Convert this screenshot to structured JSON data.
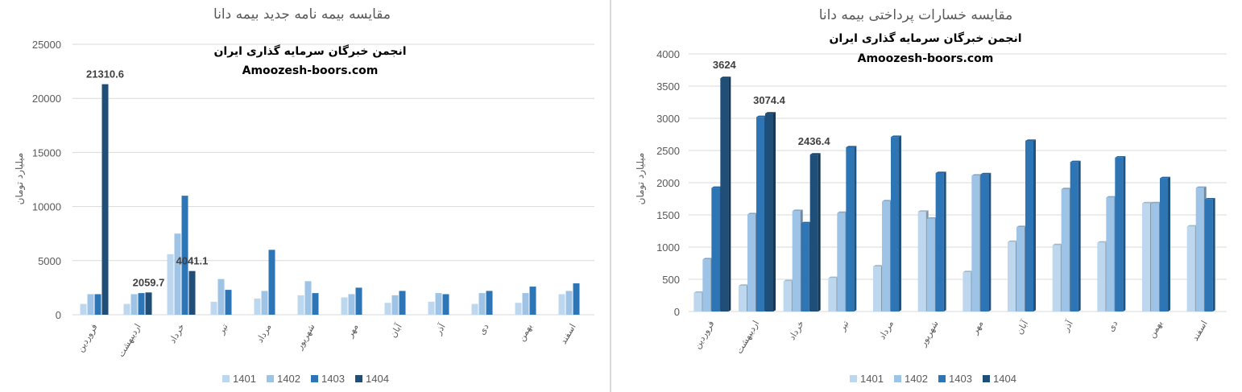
{
  "chart_data": [
    {
      "type": "bar",
      "title": "مقایسه بیمه نامه جدید بیمه دانا",
      "ylabel": "میلیارد تومان",
      "xlabel": "",
      "ylim": [
        0,
        25000
      ],
      "yticks": [
        0,
        5000,
        10000,
        15000,
        20000,
        25000
      ],
      "grid": true,
      "legend_position": "bottom",
      "categories": [
        "فروردین",
        "اردیبهشت",
        "خرداد",
        "تیر",
        "مرداد",
        "شهریور",
        "مهر",
        "آبان",
        "آذر",
        "دی",
        "بهمن",
        "اسفند"
      ],
      "series": [
        {
          "name": "1401",
          "color": "#bdd7ee",
          "values": [
            1000,
            1000,
            5600,
            1200,
            1500,
            1800,
            1600,
            1100,
            1200,
            1000,
            1100,
            1900
          ]
        },
        {
          "name": "1402",
          "color": "#9dc3e6",
          "values": [
            1900,
            1900,
            7500,
            3300,
            2200,
            3100,
            1900,
            1800,
            2000,
            2000,
            2000,
            2200
          ]
        },
        {
          "name": "1403",
          "color": "#2e75b6",
          "values": [
            1900,
            2000,
            11000,
            2300,
            6000,
            2000,
            2500,
            2200,
            1900,
            2200,
            2600,
            2900
          ]
        },
        {
          "name": "1404",
          "color": "#1f4e79",
          "values": [
            21310.6,
            2059.7,
            4041.1,
            null,
            null,
            null,
            null,
            null,
            null,
            null,
            null,
            null
          ]
        }
      ],
      "data_labels": [
        {
          "category": "فروردین",
          "series": "1404",
          "text": "21310.6"
        },
        {
          "category": "اردیبهشت",
          "series": "1404",
          "text": "2059.7"
        },
        {
          "category": "خرداد",
          "series": "1404",
          "text": "4041.1"
        }
      ],
      "watermark": [
        "انجمن خبرگان سرمایه گذاری ایران",
        "Amoozesh-boors.com"
      ]
    },
    {
      "type": "bar",
      "title": "مقایسه خسارات پرداختی بیمه دانا",
      "ylabel": "میلیارد تومان",
      "xlabel": "",
      "ylim": [
        0,
        4000
      ],
      "yticks": [
        0,
        500,
        1000,
        1500,
        2000,
        2500,
        3000,
        3500,
        4000
      ],
      "grid": true,
      "legend_position": "bottom",
      "categories": [
        "فروردین",
        "اردیبهشت",
        "خرداد",
        "تیر",
        "مرداد",
        "شهریور",
        "مهر",
        "آبان",
        "آذر",
        "دی",
        "بهمن",
        "اسفند"
      ],
      "series": [
        {
          "name": "1401",
          "color": "#bdd7ee",
          "values": [
            290,
            400,
            470,
            520,
            700,
            1550,
            610,
            1080,
            1030,
            1070,
            1680,
            1320
          ]
        },
        {
          "name": "1402",
          "color": "#9dc3e6",
          "values": [
            810,
            1510,
            1560,
            1530,
            1710,
            1440,
            2110,
            1310,
            1900,
            1770,
            1680,
            1920
          ]
        },
        {
          "name": "1403",
          "color": "#2e75b6",
          "values": [
            1920,
            3020,
            1370,
            2550,
            2710,
            2150,
            2130,
            2650,
            2320,
            2390,
            2070,
            1740
          ]
        },
        {
          "name": "1404",
          "color": "#1f4e79",
          "values": [
            3624,
            3074.4,
            2436.4,
            null,
            null,
            null,
            null,
            null,
            null,
            null,
            null,
            null
          ]
        }
      ],
      "data_labels": [
        {
          "category": "فروردین",
          "series": "1404",
          "text": "3624"
        },
        {
          "category": "اردیبهشت",
          "series": "1404",
          "text": "3074.4"
        },
        {
          "category": "خرداد",
          "series": "1404",
          "text": "2436.4"
        }
      ],
      "watermark": [
        "انجمن خبرگان سرمایه گذاری ایران",
        "Amoozesh-boors.com"
      ]
    }
  ]
}
